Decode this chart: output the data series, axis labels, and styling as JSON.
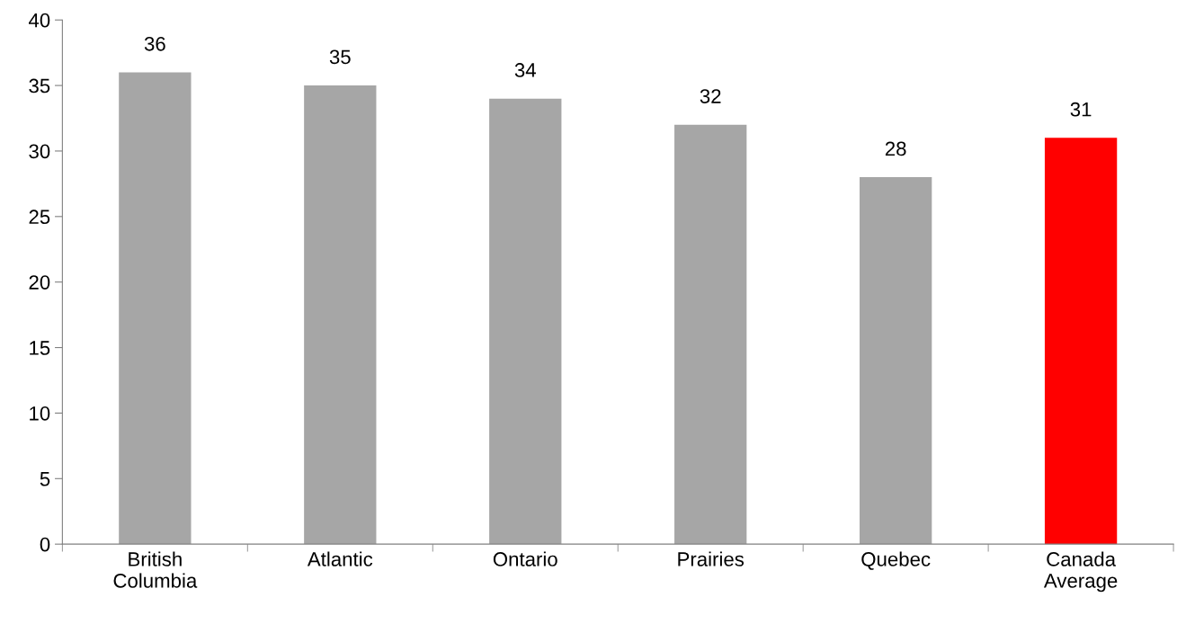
{
  "chart_data": {
    "type": "bar",
    "categories": [
      "British\nColumbia",
      "Atlantic",
      "Ontario",
      "Prairies",
      "Quebec",
      "Canada\nAverage"
    ],
    "values": [
      36,
      35,
      34,
      32,
      28,
      31
    ],
    "colors": [
      "#a6a6a6",
      "#a6a6a6",
      "#a6a6a6",
      "#a6a6a6",
      "#a6a6a6",
      "#ff0000"
    ],
    "ylim": [
      0,
      40
    ],
    "yticks": [
      0,
      5,
      10,
      15,
      20,
      25,
      30,
      35,
      40
    ],
    "data_labels": true,
    "grid": false
  }
}
